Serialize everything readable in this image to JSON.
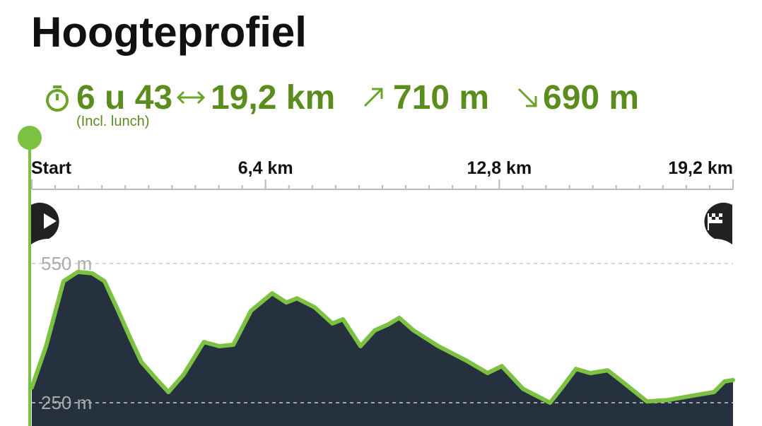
{
  "header": {
    "title": "Hoogteprofiel"
  },
  "stats": {
    "duration": "6 u 43",
    "note": "(Incl. lunch)",
    "distance": "19,2 km",
    "ascent": "710 m",
    "descent": "690 m"
  },
  "chart_data": {
    "type": "area",
    "x": [
      0,
      0.39,
      0.87,
      1.26,
      1.65,
      1.99,
      2.32,
      2.71,
      3.0,
      3.39,
      3.74,
      4.16,
      4.71,
      5.13,
      5.52,
      6.0,
      6.58,
      6.97,
      7.26,
      7.74,
      8.23,
      8.52,
      9.0,
      9.39,
      9.74,
      10.06,
      10.45,
      11.13,
      11.9,
      12.48,
      12.87,
      13.45,
      14.19,
      14.52,
      14.9,
      15.29,
      15.77,
      16.16,
      16.84,
      17.42,
      18.29,
      18.68,
      18.97,
      19.2
    ],
    "values": [
      283,
      372,
      512,
      532,
      529,
      512,
      456,
      387,
      338,
      303,
      273,
      311,
      381,
      372,
      375,
      448,
      486,
      466,
      475,
      456,
      421,
      430,
      372,
      406,
      418,
      433,
      406,
      372,
      341,
      314,
      329,
      280,
      250,
      283,
      323,
      314,
      320,
      296,
      253,
      256,
      268,
      273,
      296,
      299
    ],
    "color": "#7dc142",
    "fill": "#25313f",
    "xlim": [
      0,
      19.2
    ],
    "xticks": [
      {
        "value": 0,
        "label": "Start"
      },
      {
        "value": 6.4,
        "label": "6,4 km"
      },
      {
        "value": 12.8,
        "label": "12,8 km"
      },
      {
        "value": 19.2,
        "label": "19,2 km"
      }
    ],
    "ylim": [
      200,
      582
    ],
    "yticks": [
      {
        "value": 250,
        "label": "250 m"
      },
      {
        "value": 550,
        "label": "550 m"
      }
    ],
    "grid": true
  }
}
